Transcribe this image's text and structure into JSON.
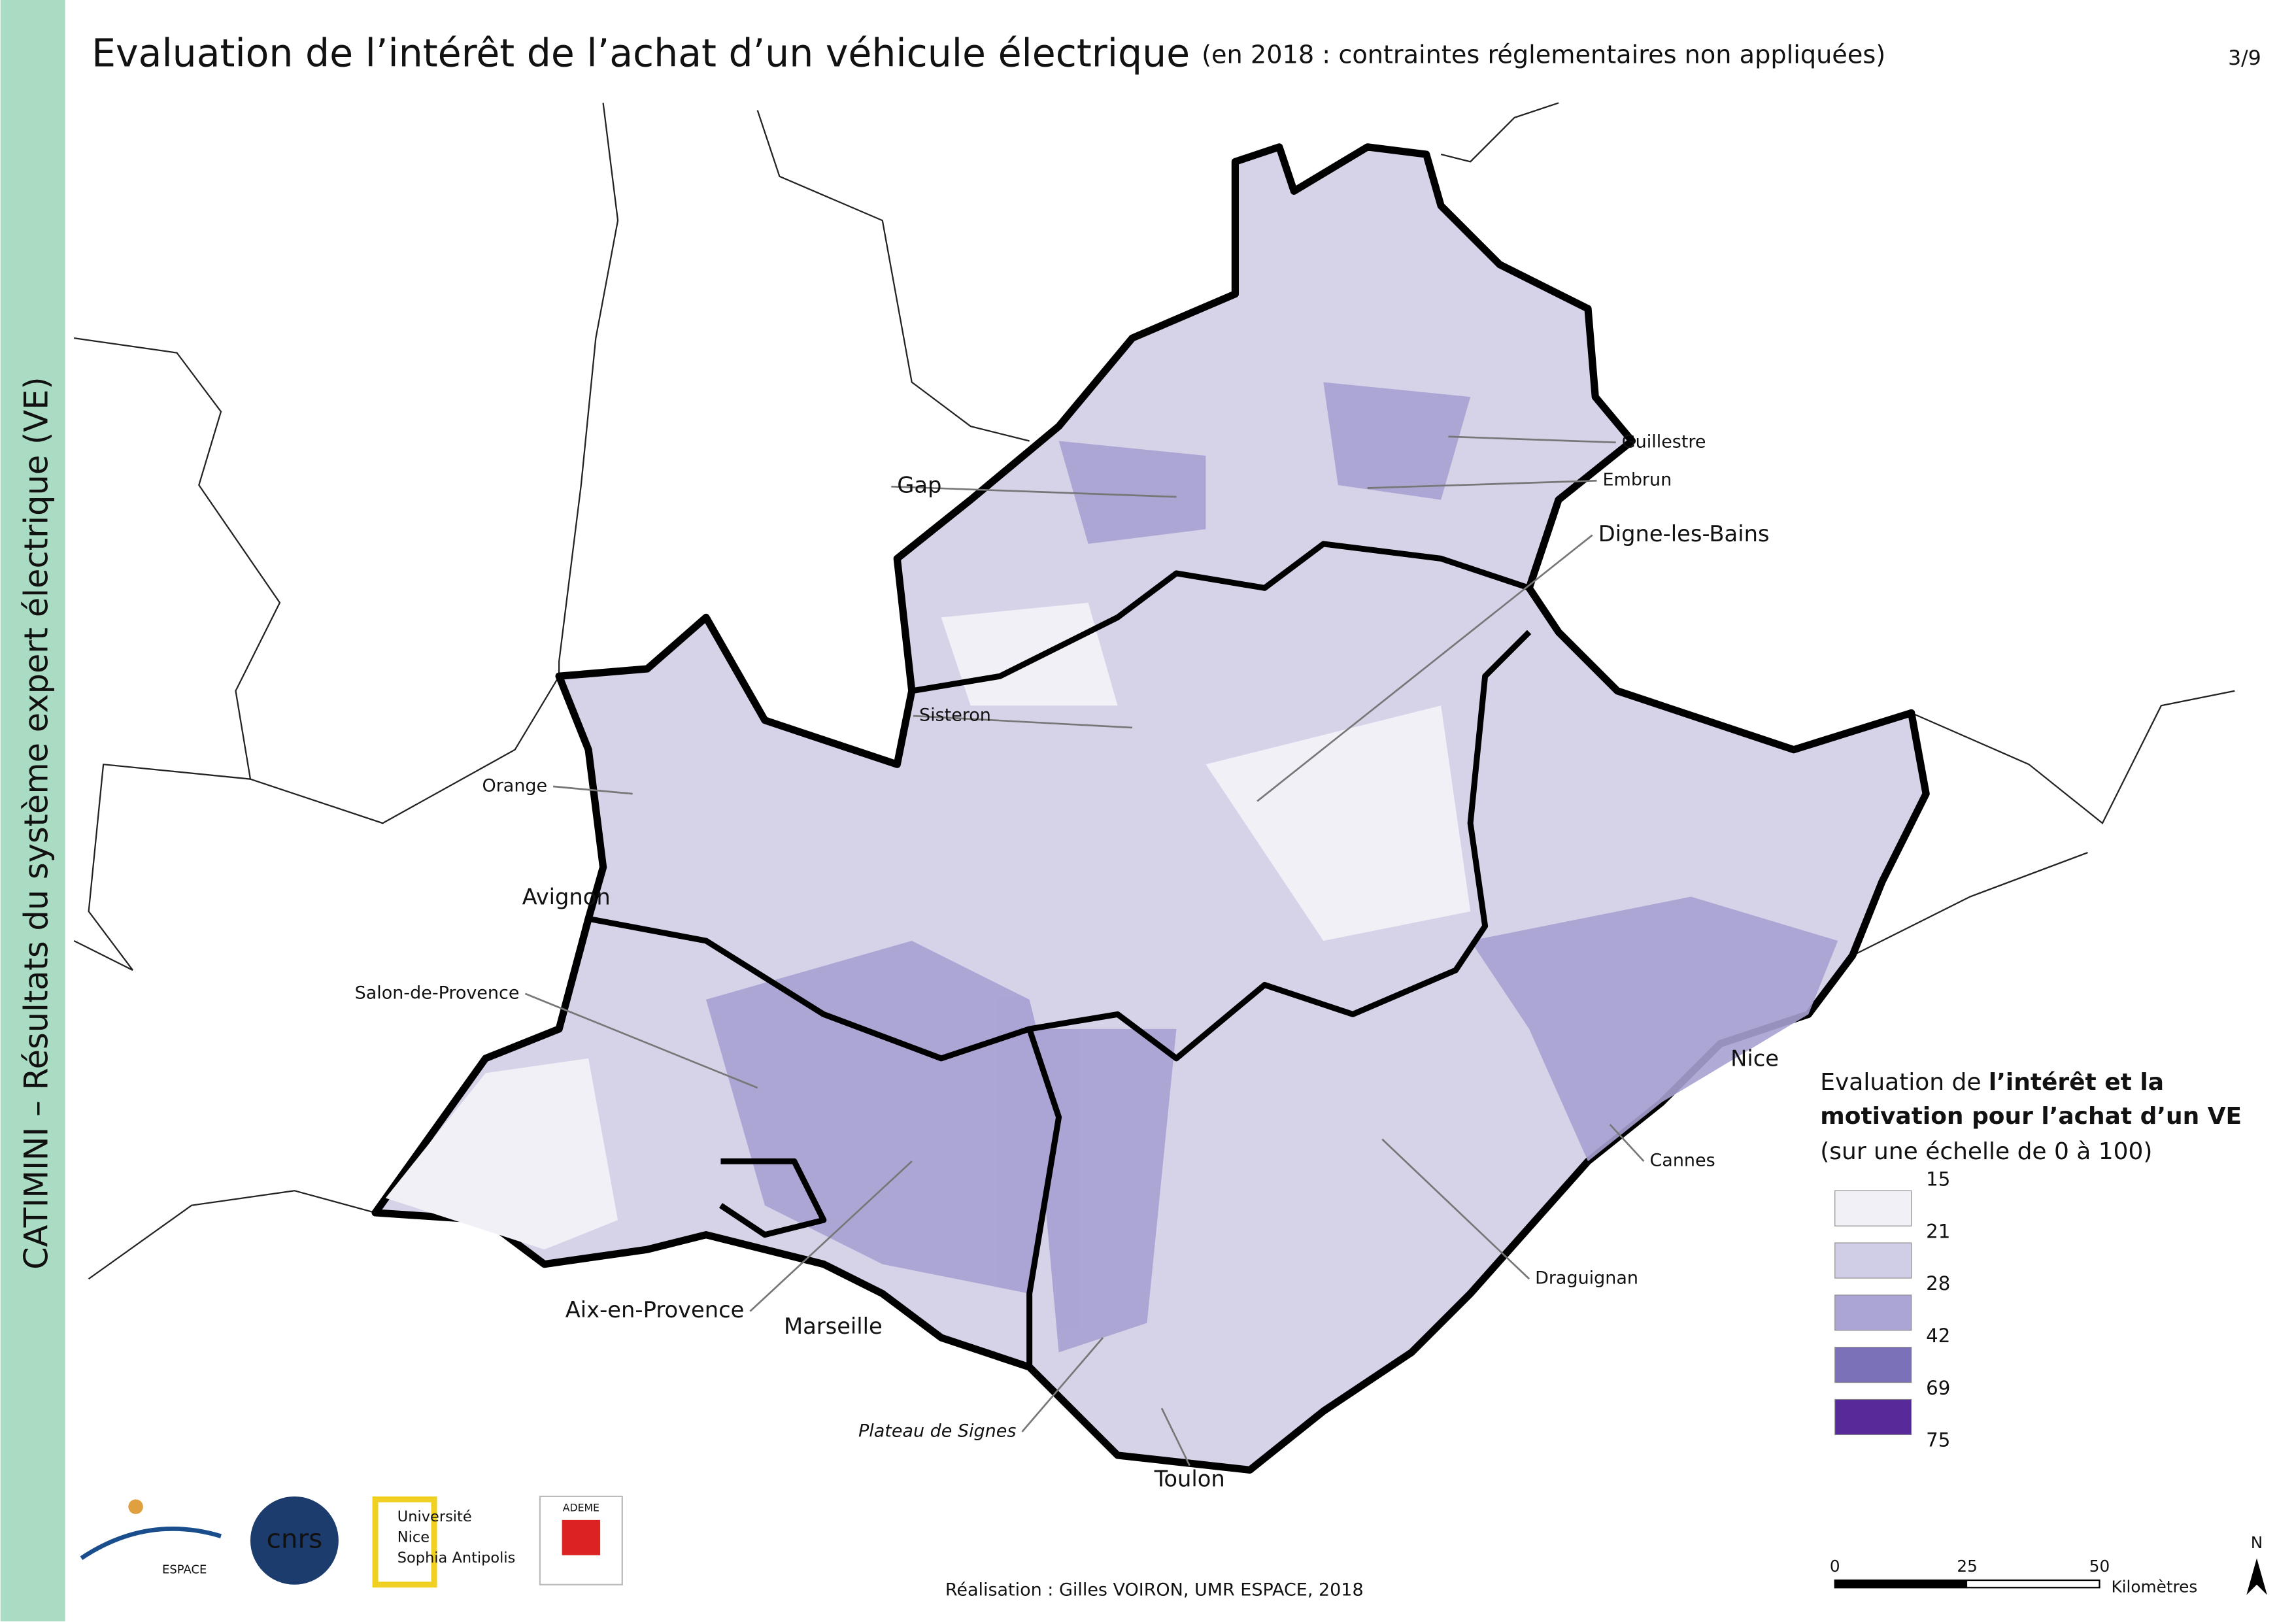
{
  "header": {
    "title": "Evaluation de l’intérêt de l’achat d’un véhicule électrique",
    "subtitle": "(en 2018 : contraintes réglementaires non appliquées)",
    "page": "3/9"
  },
  "sidebar": "CATIMINI – Résultats du système expert électrique (VE)",
  "places": [
    "Gap",
    "Guillestre",
    "Embrun",
    "Digne-les-Bains",
    "Sisteron",
    "Orange",
    "Avignon",
    "Salon-de-Provence",
    "Nice",
    "Cannes",
    "Draguignan",
    "Aix-en-Provence",
    "Marseille",
    "Plateau de Signes",
    "Toulon"
  ],
  "legend": {
    "title_start": "Evaluation de ",
    "title_bold_1": "l’intérêt et la",
    "title_bold_2": "motivation pour l’achat d’un VE",
    "title_end": "(sur une échelle de 0 à 100)",
    "labels": [
      "15",
      "21",
      "28",
      "42",
      "69",
      "75"
    ],
    "colors": [
      "#f1f0f7",
      "#d0cde6",
      "#aaa5d5",
      "#7b71b9",
      "#562a98"
    ]
  },
  "scale": {
    "ticks": [
      "0",
      "25",
      "50"
    ],
    "unit": "Kilomètres"
  },
  "north": "N",
  "credit": "Réalisation : Gilles VOIRON, UMR ESPACE, 2018",
  "logos": {
    "espace": "ESPACE",
    "cnrs": "cnrs",
    "univ_1": "Université",
    "univ_2": "Nice",
    "univ_3": "Sophia Antipolis",
    "ademe": "ADEME"
  }
}
